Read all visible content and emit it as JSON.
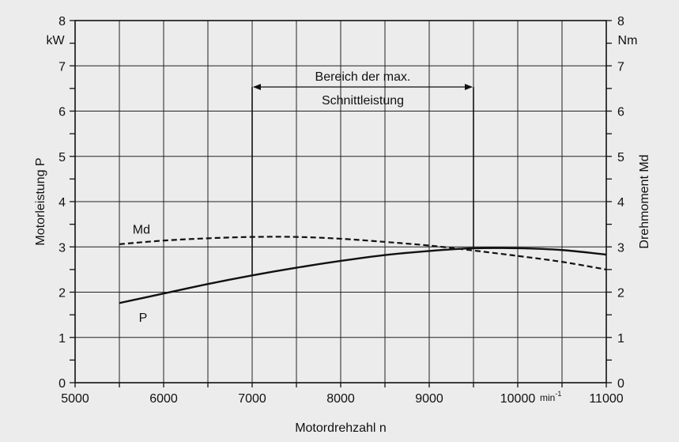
{
  "chart_data": {
    "type": "line",
    "xlabel": "Motordrehzahl  n",
    "x_unit": "min",
    "x_unit_exp": "-1",
    "xlim": [
      5000,
      11000
    ],
    "x_ticks": [
      5000,
      6000,
      7000,
      8000,
      9000,
      10000,
      11000
    ],
    "x_tick_labels": [
      "5000",
      "6000",
      "7000",
      "8000",
      "9000",
      "10000",
      "11000"
    ],
    "ylabel_left": "Motorleistung  P",
    "yunit_left": "kW",
    "ylim_left": [
      0,
      8
    ],
    "ylabel_right": "Drehmoment  Md",
    "yunit_right": "Nm",
    "ylim_right": [
      0,
      8
    ],
    "y_ticks": [
      0,
      1,
      2,
      3,
      4,
      5,
      6,
      7,
      8
    ],
    "y_tick_labels": [
      "0",
      "1",
      "2",
      "3",
      "4",
      "5",
      "6",
      "7",
      "8"
    ],
    "grid": true,
    "series": [
      {
        "name": "P",
        "style": "solid",
        "x": [
          5500,
          6000,
          6500,
          7000,
          7500,
          8000,
          8500,
          9000,
          9500,
          10000,
          10500,
          11000
        ],
        "y": [
          1.76,
          1.97,
          2.18,
          2.37,
          2.54,
          2.69,
          2.82,
          2.91,
          2.97,
          2.97,
          2.93,
          2.83
        ]
      },
      {
        "name": "Md",
        "style": "dashed",
        "x": [
          5500,
          6000,
          6500,
          7000,
          7500,
          8000,
          8500,
          9000,
          9500,
          10000,
          10500,
          11000
        ],
        "y": [
          3.06,
          3.14,
          3.19,
          3.22,
          3.22,
          3.18,
          3.11,
          3.03,
          2.92,
          2.8,
          2.67,
          2.5
        ]
      }
    ],
    "annotation": {
      "line1": "Bereich der max.",
      "line2": "Schnittleistung",
      "x_start": 7000,
      "x_end": 9500
    }
  }
}
